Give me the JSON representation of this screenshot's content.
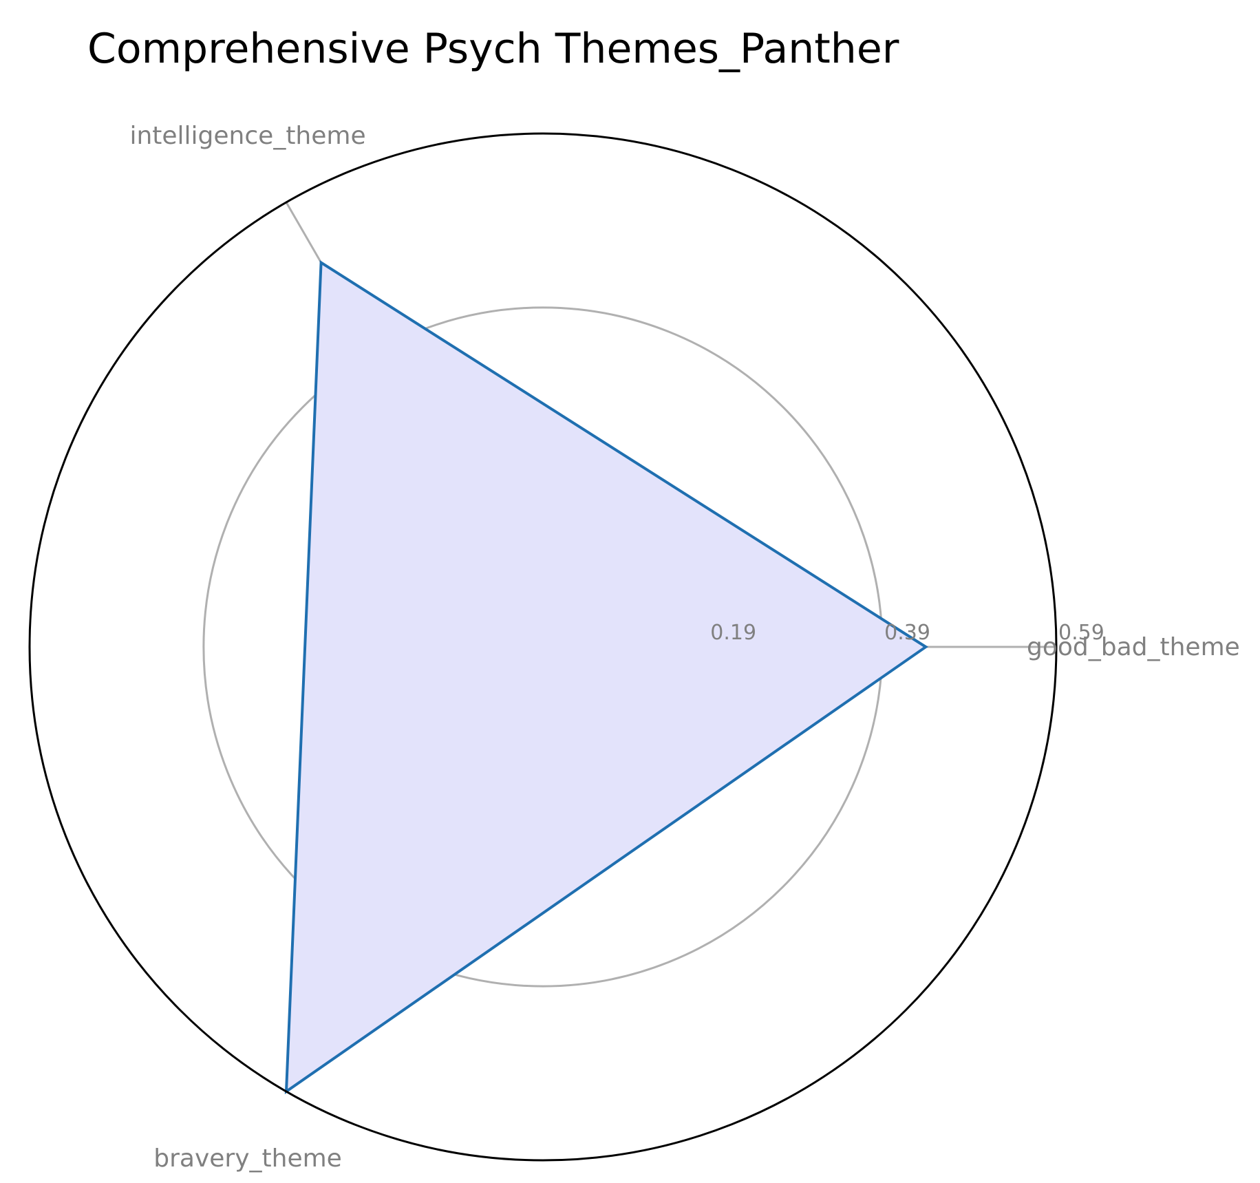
{
  "chart_data": {
    "type": "radar",
    "title": "Comprehensive Psych Themes_Panther",
    "categories": [
      "good_bad_theme",
      "intelligence_theme",
      "bravery_theme"
    ],
    "series": [
      {
        "values": [
          0.44,
          0.51,
          0.59
        ]
      }
    ],
    "radial_ticks": [
      0.19,
      0.39,
      0.59
    ],
    "radial_tick_labels": [
      "0.19",
      "0.39",
      "0.59"
    ],
    "rlim": [
      0,
      0.59
    ],
    "colors": {
      "line": "#1f6fb0",
      "fill": "#e3e3fb",
      "grid": "#b0b0b0",
      "spokes": "#b0b0b0",
      "outer_circle": "#000000",
      "labels": "#808080"
    }
  }
}
